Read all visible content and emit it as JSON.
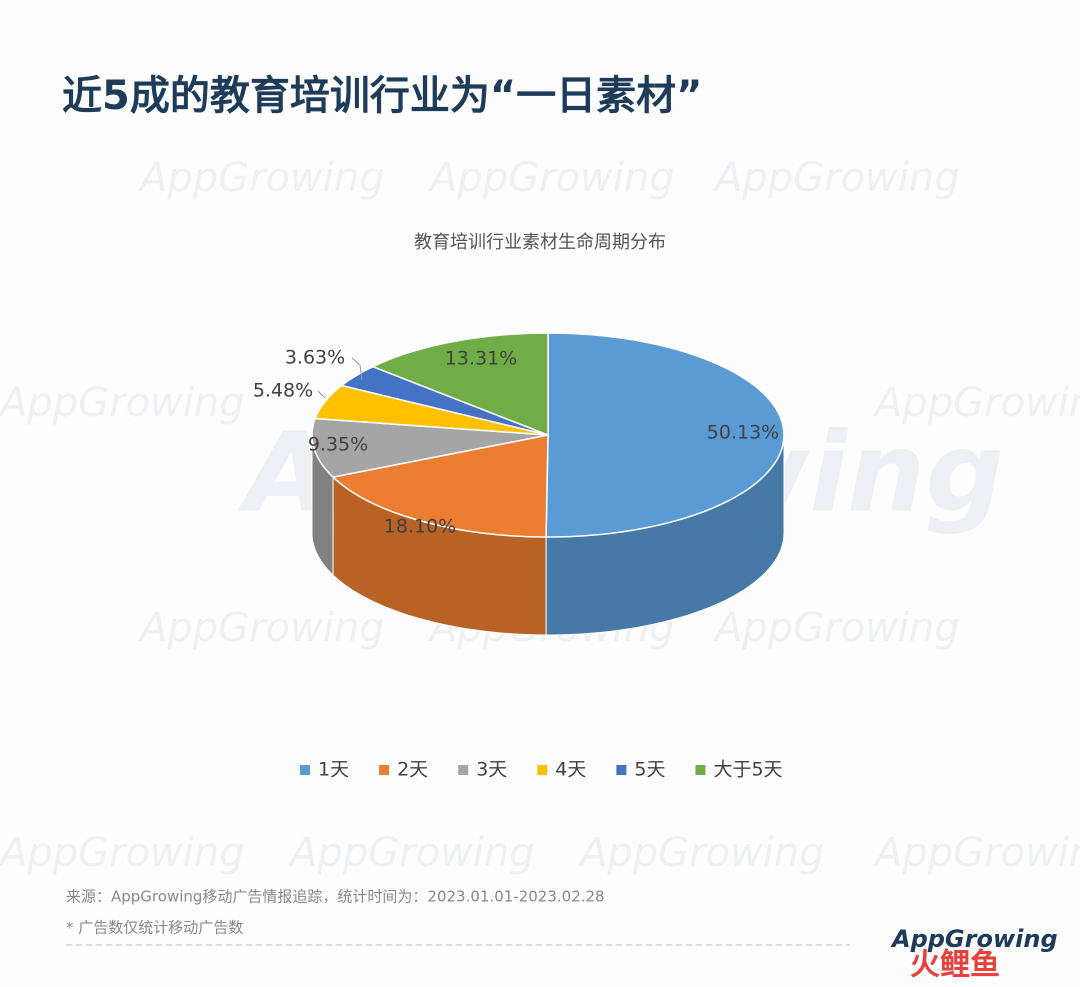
{
  "page_title": "近5成的教育培训行业为“一日素材”",
  "chart_data": {
    "type": "pie3d",
    "title": "教育培训行业素材生命周期分布",
    "categories": [
      "1天",
      "2天",
      "3天",
      "4天",
      "5天",
      "大于5天"
    ],
    "values": [
      50.13,
      18.1,
      9.35,
      5.48,
      3.63,
      13.31
    ],
    "value_labels": [
      "50.13%",
      "18.10%",
      "9.35%",
      "5.48%",
      "3.63%",
      "13.31%"
    ],
    "colors": [
      "#5b9bd5",
      "#ed7d31",
      "#a5a5a5",
      "#ffc000",
      "#4472c4",
      "#70ad47"
    ],
    "legend": "bottom"
  },
  "source": "来源：AppGrowing移动广告情报追踪，统计时间为：2023.01.01-2023.02.28",
  "note": "* 广告数仅统计移动广告数",
  "watermark": "AppGrowing",
  "logo": "AppGrowing",
  "brand": "火鲤鱼"
}
